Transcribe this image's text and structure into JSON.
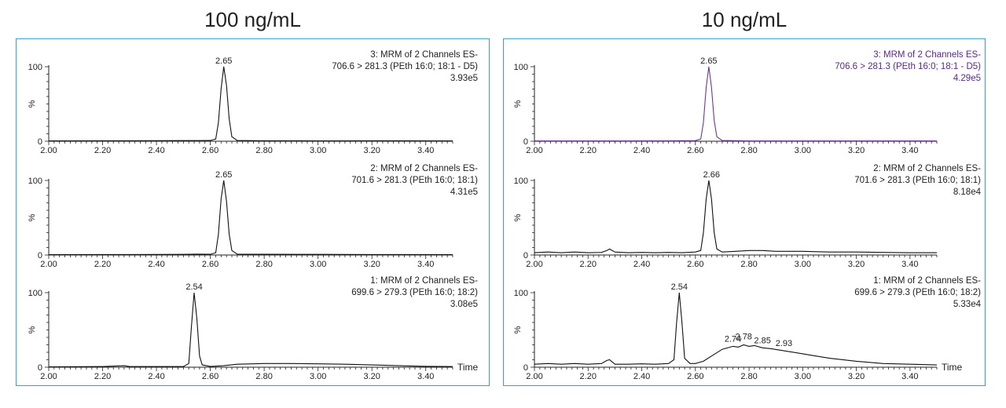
{
  "panels": [
    {
      "title": "100 ng/mL",
      "frame_color": "#3aa0c8",
      "chart_data": [
        {
          "type": "line",
          "header": [
            "3: MRM of 2 Channels ES-",
            "706.6 > 281.3 (PEth 16:0; 18:1 - D5)",
            "3.93e5"
          ],
          "header_color": "#222222",
          "ylabel": "%",
          "yticks": [
            "0",
            "100"
          ],
          "xlabel": "",
          "xticks": [
            "2.00",
            "2.20",
            "2.40",
            "2.60",
            "2.80",
            "3.00",
            "3.20",
            "3.40"
          ],
          "xlim": [
            2.0,
            3.5
          ],
          "ylim": [
            0,
            100
          ],
          "line_color": "#111111",
          "peak_labels": [
            {
              "x": 2.65,
              "y": 100,
              "text": "2.65"
            }
          ],
          "series": [
            {
              "points": [
                [
                  2.0,
                  0.5
                ],
                [
                  2.3,
                  0.6
                ],
                [
                  2.5,
                  0.8
                ],
                [
                  2.6,
                  1
                ],
                [
                  2.62,
                  3
                ],
                [
                  2.63,
                  25
                ],
                [
                  2.64,
                  70
                ],
                [
                  2.65,
                  100
                ],
                [
                  2.66,
                  75
                ],
                [
                  2.67,
                  30
                ],
                [
                  2.68,
                  6
                ],
                [
                  2.7,
                  1
                ],
                [
                  2.8,
                  0.6
                ],
                [
                  3.0,
                  0.5
                ],
                [
                  3.2,
                  0.6
                ],
                [
                  3.5,
                  0.5
                ]
              ]
            }
          ]
        },
        {
          "type": "line",
          "header": [
            "2: MRM of 2 Channels ES-",
            "701.6 > 281.3 (PEth 16:0; 18:1)",
            "4.31e5"
          ],
          "header_color": "#222222",
          "ylabel": "%",
          "yticks": [
            "0",
            "100"
          ],
          "xlabel": "",
          "xticks": [
            "2.00",
            "2.20",
            "2.40",
            "2.60",
            "2.80",
            "3.00",
            "3.20",
            "3.40"
          ],
          "xlim": [
            2.0,
            3.5
          ],
          "ylim": [
            0,
            100
          ],
          "line_color": "#111111",
          "peak_labels": [
            {
              "x": 2.65,
              "y": 100,
              "text": "2.65"
            }
          ],
          "series": [
            {
              "points": [
                [
                  2.0,
                  0.5
                ],
                [
                  2.3,
                  0.6
                ],
                [
                  2.5,
                  0.8
                ],
                [
                  2.55,
                  1.2
                ],
                [
                  2.6,
                  1
                ],
                [
                  2.62,
                  3
                ],
                [
                  2.63,
                  28
                ],
                [
                  2.64,
                  75
                ],
                [
                  2.65,
                  100
                ],
                [
                  2.66,
                  72
                ],
                [
                  2.67,
                  28
                ],
                [
                  2.68,
                  6
                ],
                [
                  2.7,
                  1.2
                ],
                [
                  2.8,
                  1
                ],
                [
                  3.0,
                  0.8
                ],
                [
                  3.2,
                  0.6
                ],
                [
                  3.5,
                  0.5
                ]
              ]
            }
          ]
        },
        {
          "type": "line",
          "header": [
            "1: MRM of 2 Channels ES-",
            "699.6 > 279.3 (PEth 16:0; 18:2)",
            "3.08e5"
          ],
          "header_color": "#222222",
          "ylabel": "%",
          "yticks": [
            "0",
            "100"
          ],
          "xlabel": "Time",
          "xticks": [
            "2.00",
            "2.20",
            "2.40",
            "2.60",
            "2.80",
            "3.00",
            "3.20",
            "3.40"
          ],
          "xlim": [
            2.0,
            3.5
          ],
          "ylim": [
            0,
            100
          ],
          "line_color": "#111111",
          "peak_labels": [
            {
              "x": 2.54,
              "y": 100,
              "text": "2.54"
            }
          ],
          "series": [
            {
              "points": [
                [
                  2.0,
                  0.5
                ],
                [
                  2.2,
                  0.8
                ],
                [
                  2.28,
                  2
                ],
                [
                  2.3,
                  0.8
                ],
                [
                  2.5,
                  0.8
                ],
                [
                  2.52,
                  5
                ],
                [
                  2.53,
                  55
                ],
                [
                  2.54,
                  100
                ],
                [
                  2.55,
                  65
                ],
                [
                  2.56,
                  15
                ],
                [
                  2.57,
                  3
                ],
                [
                  2.6,
                  1
                ],
                [
                  2.65,
                  2
                ],
                [
                  2.7,
                  4
                ],
                [
                  2.8,
                  5
                ],
                [
                  2.9,
                  5
                ],
                [
                  3.0,
                  4.5
                ],
                [
                  3.1,
                  4
                ],
                [
                  3.2,
                  3
                ],
                [
                  3.3,
                  2
                ],
                [
                  3.4,
                  1.2
                ],
                [
                  3.5,
                  0.8
                ]
              ]
            }
          ]
        }
      ]
    },
    {
      "title": "10 ng/mL",
      "frame_color": "#3aa0c8",
      "chart_data": [
        {
          "type": "line",
          "header": [
            "3: MRM of 2 Channels ES-",
            "706.6 > 281.3 (PEth 16:0; 18:1 - D5)",
            "4.29e5"
          ],
          "header_color": "#5b2a86",
          "ylabel": "%",
          "yticks": [
            "0",
            "100"
          ],
          "xlabel": "",
          "xticks": [
            "2.00",
            "2.20",
            "2.40",
            "2.60",
            "2.80",
            "3.00",
            "3.20",
            "3.40"
          ],
          "xlim": [
            2.0,
            3.5
          ],
          "ylim": [
            0,
            100
          ],
          "line_color": "#6a3a96",
          "peak_labels": [
            {
              "x": 2.65,
              "y": 100,
              "text": "2.65"
            }
          ],
          "series": [
            {
              "points": [
                [
                  2.0,
                  0.5
                ],
                [
                  2.3,
                  0.5
                ],
                [
                  2.5,
                  0.6
                ],
                [
                  2.6,
                  0.8
                ],
                [
                  2.62,
                  3
                ],
                [
                  2.63,
                  25
                ],
                [
                  2.64,
                  72
                ],
                [
                  2.65,
                  100
                ],
                [
                  2.66,
                  72
                ],
                [
                  2.67,
                  28
                ],
                [
                  2.68,
                  6
                ],
                [
                  2.7,
                  1
                ],
                [
                  2.8,
                  0.5
                ],
                [
                  3.0,
                  0.5
                ],
                [
                  3.5,
                  0.5
                ]
              ]
            }
          ]
        },
        {
          "type": "line",
          "header": [
            "2: MRM of 2 Channels ES-",
            "701.6 > 281.3 (PEth 16:0; 18:1)",
            "8.18e4"
          ],
          "header_color": "#222222",
          "ylabel": "%",
          "yticks": [
            "0",
            "100"
          ],
          "xlabel": "",
          "xticks": [
            "2.00",
            "2.20",
            "2.40",
            "2.60",
            "2.80",
            "3.00",
            "3.20",
            "3.40"
          ],
          "xlim": [
            2.0,
            3.5
          ],
          "ylim": [
            0,
            100
          ],
          "line_color": "#111111",
          "peak_labels": [
            {
              "x": 2.66,
              "y": 100,
              "text": "2.66"
            }
          ],
          "series": [
            {
              "points": [
                [
                  2.0,
                  3
                ],
                [
                  2.05,
                  4
                ],
                [
                  2.1,
                  3
                ],
                [
                  2.15,
                  4
                ],
                [
                  2.2,
                  3
                ],
                [
                  2.25,
                  3.5
                ],
                [
                  2.27,
                  6
                ],
                [
                  2.28,
                  8
                ],
                [
                  2.3,
                  4
                ],
                [
                  2.35,
                  3
                ],
                [
                  2.4,
                  3.5
                ],
                [
                  2.45,
                  3
                ],
                [
                  2.5,
                  3.5
                ],
                [
                  2.55,
                  3
                ],
                [
                  2.6,
                  4
                ],
                [
                  2.62,
                  6
                ],
                [
                  2.63,
                  30
                ],
                [
                  2.64,
                  75
                ],
                [
                  2.65,
                  100
                ],
                [
                  2.66,
                  75
                ],
                [
                  2.67,
                  30
                ],
                [
                  2.68,
                  8
                ],
                [
                  2.7,
                  4
                ],
                [
                  2.75,
                  5
                ],
                [
                  2.8,
                  6
                ],
                [
                  2.85,
                  6
                ],
                [
                  2.9,
                  5
                ],
                [
                  3.0,
                  5
                ],
                [
                  3.1,
                  4
                ],
                [
                  3.2,
                  4
                ],
                [
                  3.3,
                  3.5
                ],
                [
                  3.4,
                  3
                ],
                [
                  3.5,
                  3
                ]
              ]
            }
          ]
        },
        {
          "type": "line",
          "header": [
            "1: MRM of 2 Channels ES-",
            "699.6 > 279.3 (PEth 16:0; 18:2)",
            "5.33e4"
          ],
          "header_color": "#222222",
          "ylabel": "%",
          "yticks": [
            "0",
            "100"
          ],
          "xlabel": "Time",
          "xticks": [
            "2.00",
            "2.20",
            "2.40",
            "2.60",
            "2.80",
            "3.00",
            "3.20",
            "3.40"
          ],
          "xlim": [
            2.0,
            3.5
          ],
          "ylim": [
            0,
            100
          ],
          "line_color": "#111111",
          "peak_labels": [
            {
              "x": 2.54,
              "y": 100,
              "text": "2.54"
            },
            {
              "x": 2.74,
              "y": 30,
              "text": "2.74"
            },
            {
              "x": 2.78,
              "y": 33,
              "text": "2.78"
            },
            {
              "x": 2.85,
              "y": 28,
              "text": "2.85"
            },
            {
              "x": 2.93,
              "y": 24,
              "text": "2.93"
            }
          ],
          "series": [
            {
              "points": [
                [
                  2.0,
                  4
                ],
                [
                  2.05,
                  5
                ],
                [
                  2.1,
                  4
                ],
                [
                  2.15,
                  5
                ],
                [
                  2.2,
                  4
                ],
                [
                  2.25,
                  5
                ],
                [
                  2.27,
                  9
                ],
                [
                  2.28,
                  10
                ],
                [
                  2.3,
                  4
                ],
                [
                  2.35,
                  4
                ],
                [
                  2.4,
                  4.5
                ],
                [
                  2.45,
                  4
                ],
                [
                  2.5,
                  5
                ],
                [
                  2.52,
                  10
                ],
                [
                  2.53,
                  60
                ],
                [
                  2.54,
                  100
                ],
                [
                  2.55,
                  60
                ],
                [
                  2.56,
                  12
                ],
                [
                  2.58,
                  5
                ],
                [
                  2.6,
                  5
                ],
                [
                  2.63,
                  8
                ],
                [
                  2.66,
                  15
                ],
                [
                  2.7,
                  24
                ],
                [
                  2.74,
                  28
                ],
                [
                  2.76,
                  27
                ],
                [
                  2.78,
                  30
                ],
                [
                  2.8,
                  28
                ],
                [
                  2.82,
                  29
                ],
                [
                  2.85,
                  26
                ],
                [
                  2.88,
                  25
                ],
                [
                  2.93,
                  22
                ],
                [
                  3.0,
                  18
                ],
                [
                  3.05,
                  15
                ],
                [
                  3.1,
                  12
                ],
                [
                  3.2,
                  8
                ],
                [
                  3.3,
                  5
                ],
                [
                  3.4,
                  4
                ],
                [
                  3.5,
                  3
                ]
              ]
            }
          ]
        }
      ]
    }
  ]
}
